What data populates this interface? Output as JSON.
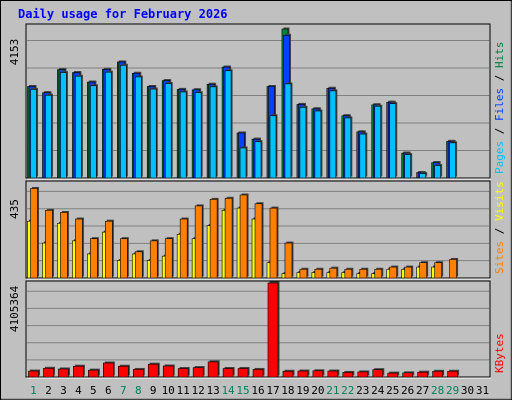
{
  "chart_data": {
    "type": "bar",
    "title": "Daily usage for February 2026",
    "days": [
      "1",
      "2",
      "3",
      "4",
      "5",
      "6",
      "7",
      "8",
      "9",
      "10",
      "11",
      "12",
      "13",
      "14",
      "15",
      "16",
      "17",
      "18",
      "19",
      "20",
      "21",
      "22",
      "23",
      "24",
      "25",
      "26",
      "27",
      "28",
      "29",
      "30",
      "31"
    ],
    "weekend_days": [
      1,
      7,
      8,
      14,
      15,
      21,
      22,
      28,
      29
    ],
    "panels": [
      {
        "id": "hits",
        "max_label": "4153",
        "ymax": 4153,
        "legend": [
          {
            "text": "Pages",
            "color": "#00c0ff"
          },
          {
            "text": " / ",
            "color": "#000000"
          },
          {
            "text": "Files",
            "color": "#0040ff"
          },
          {
            "text": " / ",
            "color": "#000000"
          },
          {
            "text": "Hits",
            "color": "#008040"
          }
        ],
        "series": [
          {
            "name": "Hits",
            "color": "#008040",
            "values": [
              2500,
              2330,
              2960,
              2880,
              2620,
              2970,
              3170,
              2860,
              2500,
              2660,
              2420,
              2410,
              2560,
              3030,
              1230,
              1060,
              2500,
              4070,
              2010,
              1890,
              2450,
              1700,
              1260,
              2000,
              2070,
              680,
              150,
              420,
              1000,
              0,
              0
            ]
          },
          {
            "name": "Files",
            "color": "#0040ff",
            "values": [
              2500,
              2330,
              2960,
              2880,
              2620,
              2970,
              3170,
              2860,
              2500,
              2660,
              2420,
              2410,
              2560,
              3030,
              1230,
              1060,
              2500,
              3900,
              2010,
              1890,
              2450,
              1700,
              1260,
              2000,
              2070,
              680,
              150,
              420,
              1000,
              0,
              0
            ]
          },
          {
            "name": "Pages",
            "color": "#00c0ff",
            "values": [
              2420,
              2260,
              2880,
              2780,
              2520,
              2890,
              3080,
              2760,
              2430,
              2580,
              2350,
              2330,
              2490,
              2930,
              820,
              990,
              1700,
              2570,
              1930,
              1830,
              2380,
              1640,
              1200,
              1960,
              2030,
              640,
              120,
              340,
              960,
              0,
              0
            ]
          }
        ]
      },
      {
        "id": "visits",
        "max_label": "435",
        "ymax": 435,
        "legend": [
          {
            "text": "Sites",
            "color": "#ff8000"
          },
          {
            "text": " / ",
            "color": "#000000"
          },
          {
            "text": "Visits",
            "color": "#ffff00"
          }
        ],
        "series": [
          {
            "name": "Visits",
            "color": "#ffff00",
            "values": [
              260,
              160,
              250,
              170,
              110,
              210,
              80,
              110,
              80,
              100,
              200,
              180,
              240,
              310,
              320,
              270,
              70,
              20,
              25,
              25,
              25,
              25,
              20,
              20,
              40,
              40,
              50,
              50,
              0,
              0,
              0
            ]
          },
          {
            "name": "Sites",
            "color": "#ff8000",
            "values": [
              410,
              310,
              300,
              270,
              180,
              260,
              180,
              120,
              170,
              180,
              270,
              330,
              360,
              365,
              380,
              340,
              320,
              160,
              40,
              40,
              45,
              40,
              40,
              40,
              50,
              50,
              70,
              70,
              85,
              0,
              0
            ]
          }
        ]
      },
      {
        "id": "kbytes",
        "max_label": "4105364",
        "ymax": 4105364,
        "legend": [
          {
            "text": "KBytes",
            "color": "#ff0000"
          }
        ],
        "series": [
          {
            "name": "KBytes",
            "color": "#ff0000",
            "values": [
              260000,
              380000,
              350000,
              470000,
              300000,
              610000,
              470000,
              330000,
              560000,
              480000,
              370000,
              410000,
              660000,
              370000,
              370000,
              330000,
              4105364,
              250000,
              260000,
              270000,
              260000,
              200000,
              220000,
              320000,
              170000,
              180000,
              210000,
              250000,
              250000,
              0,
              0
            ]
          }
        ]
      }
    ]
  }
}
